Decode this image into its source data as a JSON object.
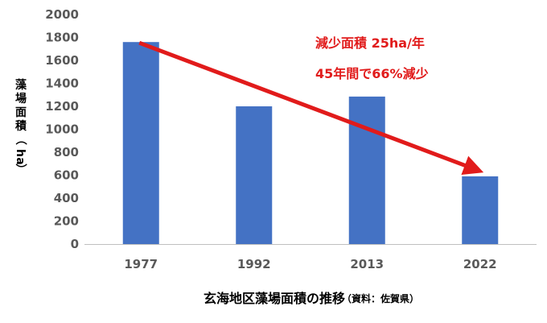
{
  "colors": {
    "bar": "#4472C4",
    "trend": "#E11B1B",
    "annotation": "#E11B1B",
    "tick": "#595959",
    "axis": "#BFBFBF"
  },
  "chart_data": {
    "type": "bar",
    "categories": [
      "1977",
      "1992",
      "2013",
      "2022"
    ],
    "values": [
      1760,
      1200,
      1285,
      590
    ],
    "ylim": [
      0,
      2000
    ],
    "yticks": [
      0,
      200,
      400,
      600,
      800,
      1000,
      1200,
      1400,
      1600,
      1800,
      2000
    ],
    "ylabel": "藻場面積（ha）",
    "xlabel": "",
    "title": "玄海地区藻場面積の推移",
    "source": "（資料：佐賀県）",
    "grid": false,
    "trend_arrow": {
      "from_category": "1977",
      "to_category": "2022"
    },
    "annotations": [
      "減少面積 25ha/年",
      "45年間で66%減少"
    ]
  }
}
